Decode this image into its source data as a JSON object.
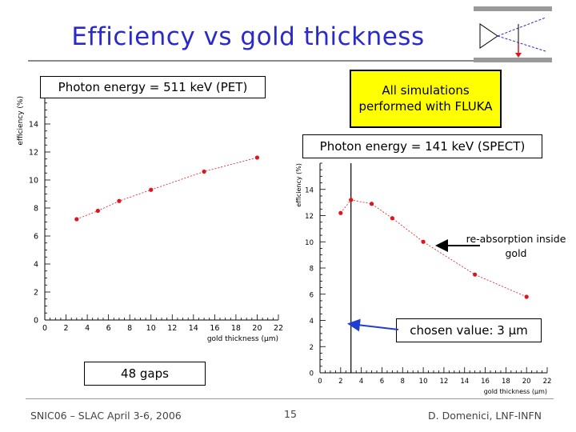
{
  "slide": {
    "title": "Efficiency vs gold thickness",
    "pet_box": "Photon energy = 511 keV (PET)",
    "fluka_box": "All simulations performed with FLUKA",
    "spect_box": "Photon energy = 141 keV (SPECT)",
    "gaps_box": "48 gaps",
    "reabsorption_note": "re-absorption inside gold",
    "chosen_value_note": "chosen value: 3 μm",
    "footer_left": "SNIC06 – SLAC April 3-6, 2006",
    "footer_page": "15",
    "footer_right": "D. Domenici, LNF-INFN"
  },
  "colors": {
    "title": "#2a2acc",
    "fluka_box_bg": "#ffff00",
    "data_point": "#e0141e",
    "chosen_arrow": "#1f3fd0"
  },
  "chart_data": [
    {
      "type": "scatter",
      "title": "PET",
      "xlabel": "gold thickness (μm)",
      "ylabel": "efficiency (%)",
      "xlim": [
        0,
        22
      ],
      "ylim": [
        0,
        16
      ],
      "xticks": [
        0,
        2,
        4,
        6,
        8,
        10,
        12,
        14,
        16,
        18,
        20,
        22
      ],
      "yticks": [
        0,
        2,
        4,
        6,
        8,
        10,
        12,
        14
      ],
      "series": [
        {
          "name": "efficiency",
          "x": [
            3,
            5,
            7,
            10,
            15,
            20
          ],
          "y": [
            7.2,
            7.8,
            8.5,
            9.3,
            10.6,
            11.6
          ]
        }
      ]
    },
    {
      "type": "scatter",
      "title": "SPECT",
      "xlabel": "gold thickness (μm)",
      "ylabel": "efficiency (%)",
      "xlim": [
        0,
        22
      ],
      "ylim": [
        0,
        16
      ],
      "xticks": [
        0,
        2,
        4,
        6,
        8,
        10,
        12,
        14,
        16,
        18,
        20,
        22
      ],
      "yticks": [
        0,
        2,
        4,
        6,
        8,
        10,
        12,
        14
      ],
      "chosen_x": 3,
      "series": [
        {
          "name": "efficiency",
          "x": [
            2,
            3,
            5,
            7,
            10,
            15,
            20
          ],
          "y": [
            12.2,
            13.2,
            12.9,
            11.8,
            10.0,
            7.5,
            5.8
          ]
        }
      ]
    }
  ]
}
